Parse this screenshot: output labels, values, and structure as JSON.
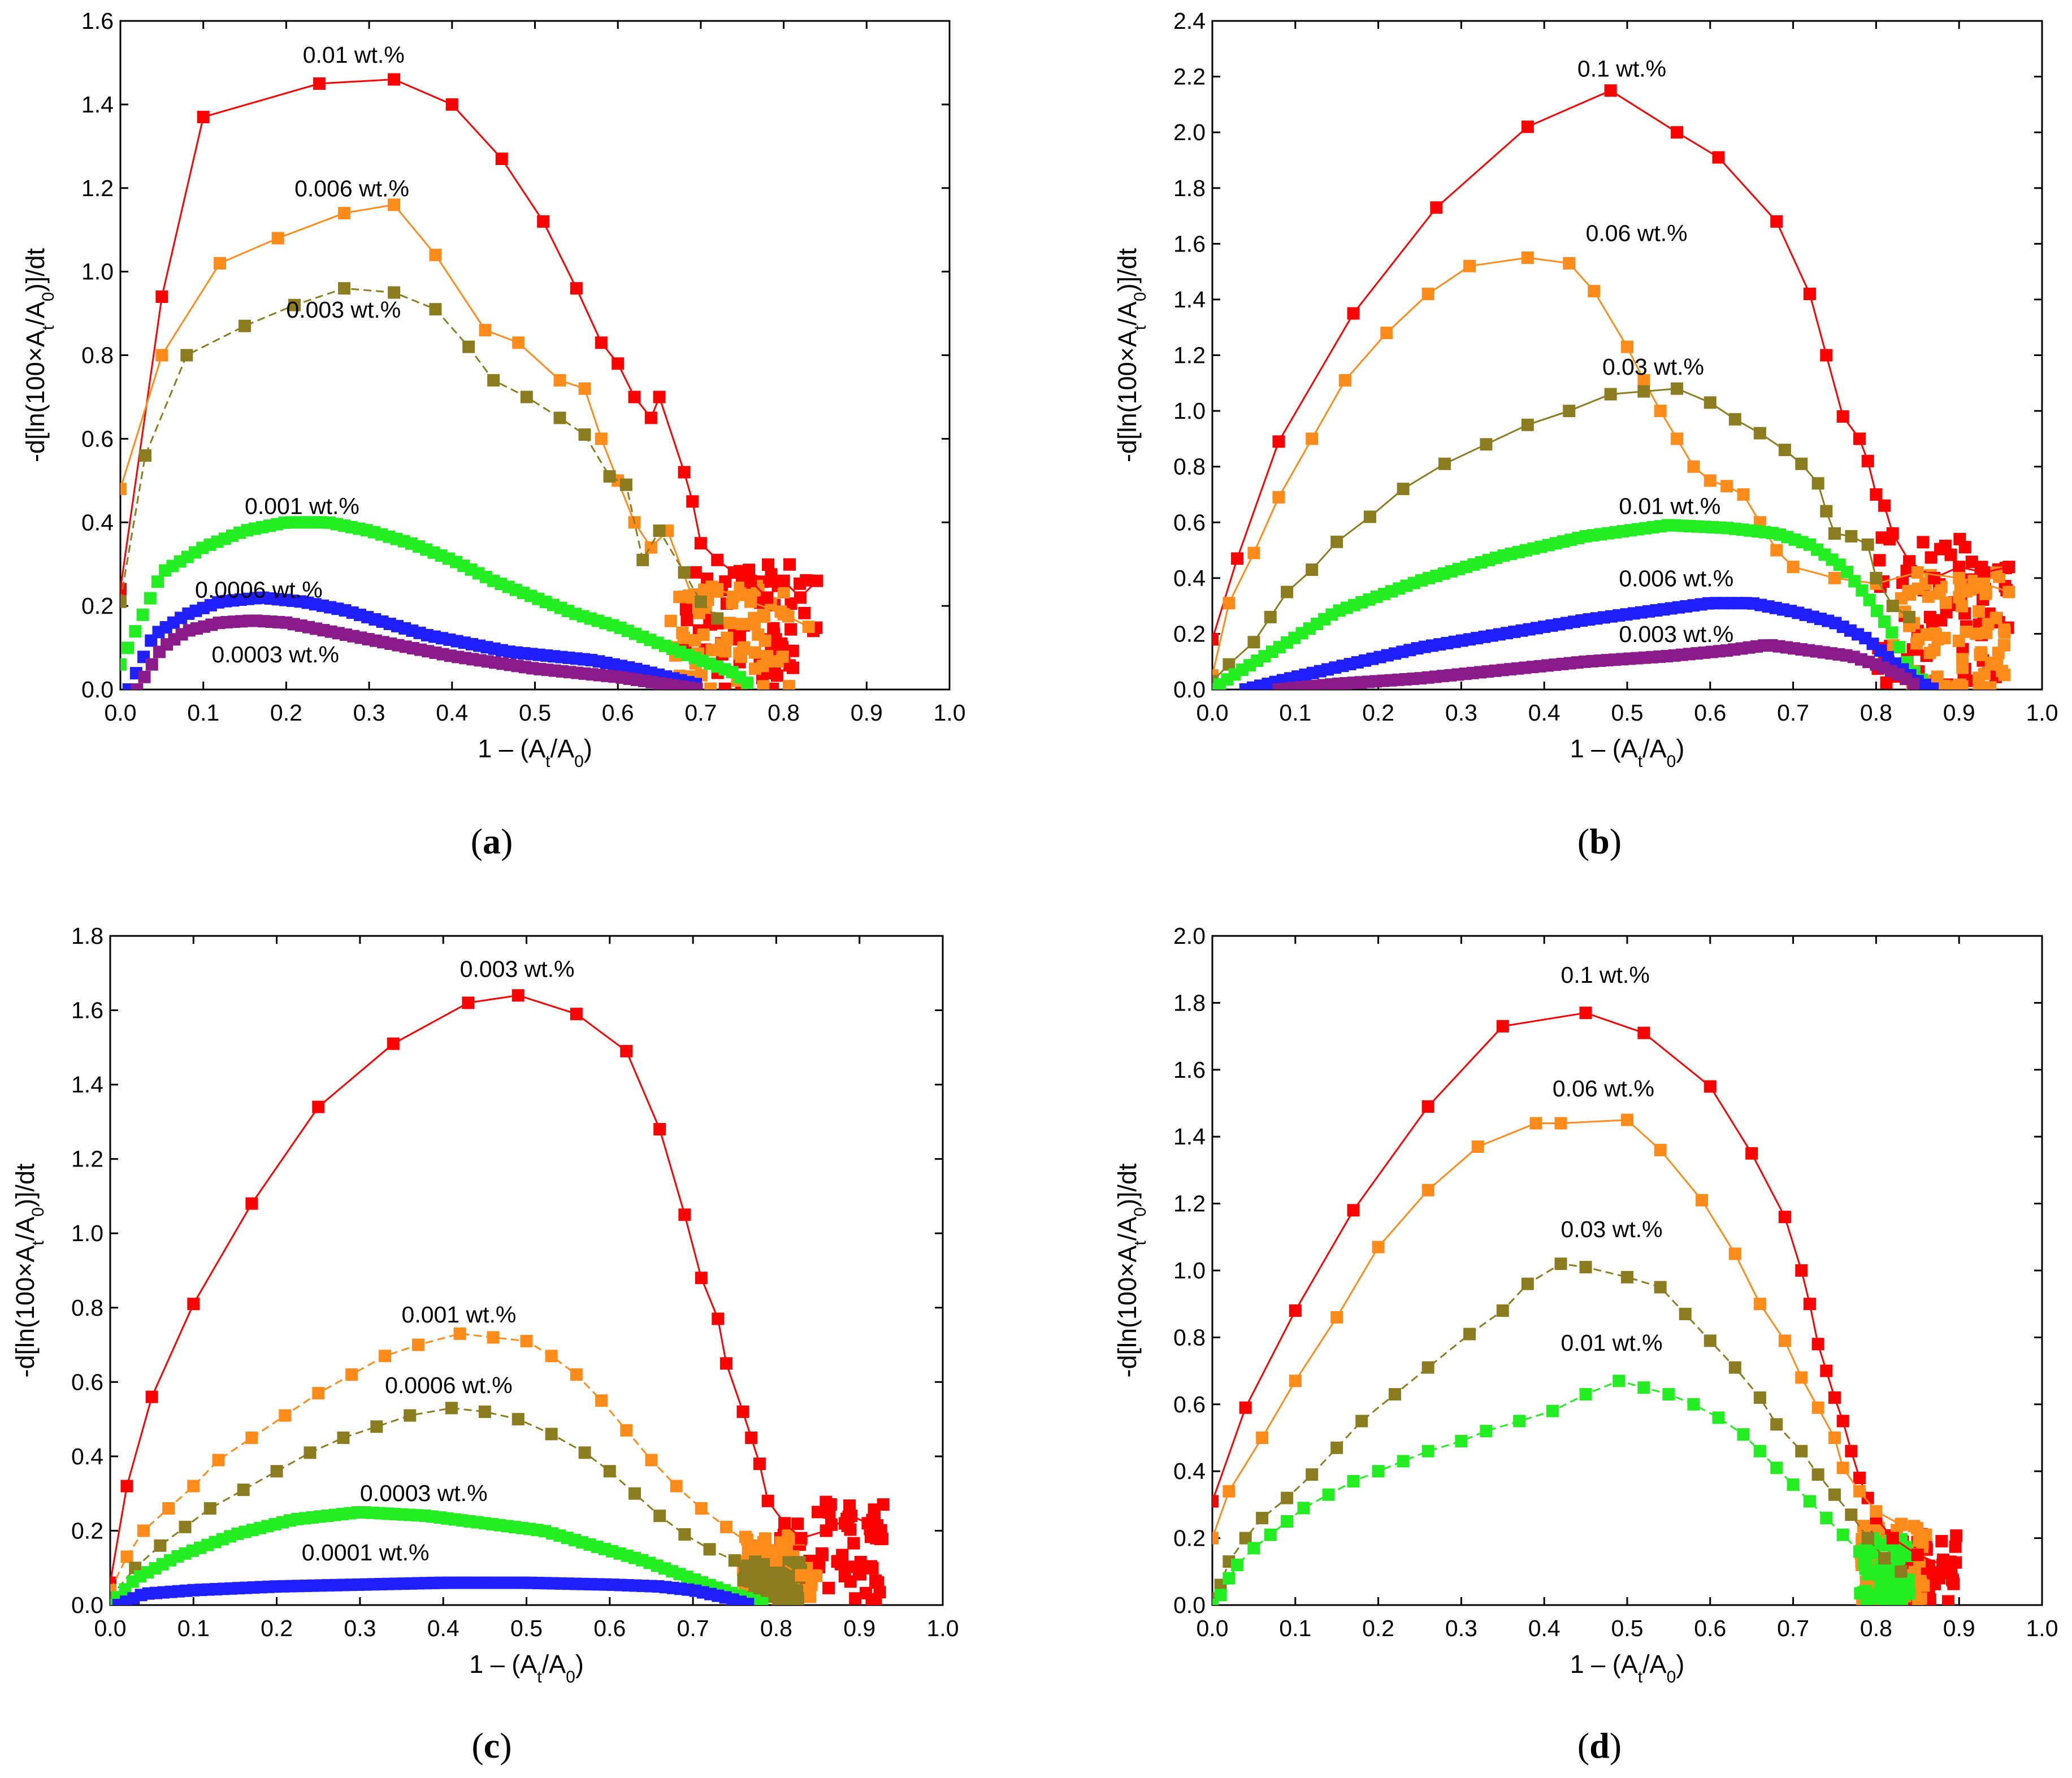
{
  "colors": {
    "red": "#ff0000",
    "orange": "#ff8c1a",
    "olive": "#8b7d1f",
    "green": "#22ee22",
    "blue": "#1f1fff",
    "purple": "#8b1a8b"
  },
  "chart_data": [
    {
      "id": "a",
      "type": "scatter",
      "panel_label": "a",
      "xlabel": "1 – (A_t/A_0)",
      "ylabel": "-d[ln(100×A_t/A_0)]/dt",
      "xlim": [
        0.0,
        1.0
      ],
      "ylim": [
        0.0,
        1.6
      ],
      "xticks": [
        "0.0",
        "0.1",
        "0.2",
        "0.3",
        "0.4",
        "0.5",
        "0.6",
        "0.7",
        "0.8",
        "0.9",
        "1.0"
      ],
      "yticks": [
        "0.0",
        "0.2",
        "0.4",
        "0.6",
        "0.8",
        "1.0",
        "1.2",
        "1.4",
        "1.6"
      ],
      "grid": false,
      "series": [
        {
          "name": "0.01 wt.%",
          "color": "red",
          "points": [
            [
              0.0,
              0.24
            ],
            [
              0.05,
              0.94
            ],
            [
              0.1,
              1.37
            ],
            [
              0.24,
              1.45
            ],
            [
              0.33,
              1.46
            ],
            [
              0.4,
              1.4
            ],
            [
              0.46,
              1.27
            ],
            [
              0.51,
              1.12
            ],
            [
              0.55,
              0.96
            ],
            [
              0.58,
              0.83
            ],
            [
              0.6,
              0.78
            ],
            [
              0.62,
              0.7
            ],
            [
              0.64,
              0.65
            ],
            [
              0.65,
              0.7
            ],
            [
              0.68,
              0.52
            ],
            [
              0.69,
              0.45
            ],
            [
              0.7,
              0.35
            ],
            [
              0.72,
              0.31
            ],
            [
              0.74,
              0.28
            ],
            [
              0.76,
              0.26
            ],
            [
              0.78,
              0.22
            ],
            [
              0.8,
              0.26
            ],
            [
              0.82,
              0.22
            ],
            [
              0.84,
              0.26
            ]
          ],
          "label_pos": [
            0.22,
            1.5
          ]
        },
        {
          "name": "0.006 wt.%",
          "color": "orange",
          "points": [
            [
              0.0,
              0.48
            ],
            [
              0.05,
              0.8
            ],
            [
              0.12,
              1.02
            ],
            [
              0.19,
              1.08
            ],
            [
              0.27,
              1.14
            ],
            [
              0.33,
              1.16
            ],
            [
              0.38,
              1.04
            ],
            [
              0.44,
              0.86
            ],
            [
              0.48,
              0.83
            ],
            [
              0.53,
              0.74
            ],
            [
              0.56,
              0.72
            ],
            [
              0.58,
              0.6
            ],
            [
              0.6,
              0.5
            ],
            [
              0.62,
              0.4
            ],
            [
              0.64,
              0.34
            ],
            [
              0.66,
              0.38
            ],
            [
              0.69,
              0.22
            ],
            [
              0.72,
              0.24
            ],
            [
              0.76,
              0.21
            ],
            [
              0.8,
              0.18
            ],
            [
              0.83,
              0.15
            ]
          ],
          "label_pos": [
            0.21,
            1.18
          ]
        },
        {
          "name": "0.003 wt.%",
          "color": "olive",
          "points": [
            [
              0.0,
              0.21
            ],
            [
              0.03,
              0.56
            ],
            [
              0.08,
              0.8
            ],
            [
              0.15,
              0.87
            ],
            [
              0.21,
              0.92
            ],
            [
              0.27,
              0.96
            ],
            [
              0.33,
              0.95
            ],
            [
              0.38,
              0.91
            ],
            [
              0.42,
              0.82
            ],
            [
              0.45,
              0.74
            ],
            [
              0.49,
              0.7
            ],
            [
              0.53,
              0.65
            ],
            [
              0.56,
              0.61
            ],
            [
              0.59,
              0.51
            ],
            [
              0.61,
              0.49
            ],
            [
              0.63,
              0.31
            ],
            [
              0.65,
              0.38
            ],
            [
              0.68,
              0.28
            ],
            [
              0.7,
              0.21
            ],
            [
              0.72,
              0.17
            ]
          ],
          "label_pos": [
            0.2,
            0.89
          ]
        },
        {
          "name": "0.001 wt.%",
          "color": "green",
          "curve": [
            [
              0.0,
              0.06
            ],
            [
              0.05,
              0.28
            ],
            [
              0.1,
              0.34
            ],
            [
              0.15,
              0.38
            ],
            [
              0.2,
              0.4
            ],
            [
              0.25,
              0.4
            ],
            [
              0.3,
              0.38
            ],
            [
              0.35,
              0.35
            ],
            [
              0.4,
              0.31
            ],
            [
              0.45,
              0.26
            ],
            [
              0.5,
              0.22
            ],
            [
              0.55,
              0.18
            ],
            [
              0.6,
              0.15
            ],
            [
              0.65,
              0.11
            ],
            [
              0.7,
              0.07
            ],
            [
              0.74,
              0.04
            ],
            [
              0.76,
              0.01
            ]
          ],
          "label_pos": [
            0.15,
            0.42
          ]
        },
        {
          "name": "0.0006 wt.%",
          "color": "blue",
          "curve": [
            [
              0.01,
              0.0
            ],
            [
              0.04,
              0.13
            ],
            [
              0.08,
              0.18
            ],
            [
              0.12,
              0.21
            ],
            [
              0.17,
              0.22
            ],
            [
              0.22,
              0.21
            ],
            [
              0.27,
              0.19
            ],
            [
              0.32,
              0.16
            ],
            [
              0.37,
              0.13
            ],
            [
              0.42,
              0.11
            ],
            [
              0.47,
              0.09
            ],
            [
              0.52,
              0.08
            ],
            [
              0.57,
              0.07
            ],
            [
              0.62,
              0.05
            ],
            [
              0.66,
              0.03
            ],
            [
              0.7,
              0.01
            ]
          ],
          "label_pos": [
            0.09,
            0.22
          ]
        },
        {
          "name": "0.0003 wt.%",
          "color": "purple",
          "curve": [
            [
              0.02,
              0.0
            ],
            [
              0.05,
              0.1
            ],
            [
              0.08,
              0.14
            ],
            [
              0.12,
              0.16
            ],
            [
              0.16,
              0.165
            ],
            [
              0.2,
              0.16
            ],
            [
              0.25,
              0.14
            ],
            [
              0.3,
              0.12
            ],
            [
              0.35,
              0.1
            ],
            [
              0.4,
              0.08
            ],
            [
              0.45,
              0.065
            ],
            [
              0.5,
              0.05
            ],
            [
              0.55,
              0.04
            ],
            [
              0.6,
              0.03
            ],
            [
              0.65,
              0.015
            ],
            [
              0.7,
              0.0
            ]
          ],
          "label_pos": [
            0.11,
            0.065
          ]
        }
      ]
    },
    {
      "id": "b",
      "type": "scatter",
      "panel_label": "b",
      "xlabel": "1 – (A_t/A_0)",
      "ylabel": "-d[ln(100×A_t/A_0)]/dt",
      "xlim": [
        0.0,
        1.0
      ],
      "ylim": [
        0.0,
        2.4
      ],
      "xticks": [
        "0.0",
        "0.1",
        "0.2",
        "0.3",
        "0.4",
        "0.5",
        "0.6",
        "0.7",
        "0.8",
        "0.9",
        "1.0"
      ],
      "yticks": [
        "0.0",
        "0.2",
        "0.4",
        "0.6",
        "0.8",
        "1.0",
        "1.2",
        "1.4",
        "1.6",
        "1.8",
        "2.0",
        "2.2",
        "2.4"
      ],
      "grid": false,
      "series": [
        {
          "name": "0.1 wt.%",
          "color": "red",
          "points": [
            [
              0.0,
              0.18
            ],
            [
              0.03,
              0.47
            ],
            [
              0.08,
              0.89
            ],
            [
              0.17,
              1.35
            ],
            [
              0.27,
              1.73
            ],
            [
              0.38,
              2.02
            ],
            [
              0.48,
              2.15
            ],
            [
              0.56,
              2.0
            ],
            [
              0.61,
              1.91
            ],
            [
              0.68,
              1.68
            ],
            [
              0.72,
              1.42
            ],
            [
              0.74,
              1.2
            ],
            [
              0.76,
              0.98
            ],
            [
              0.78,
              0.9
            ],
            [
              0.79,
              0.82
            ],
            [
              0.8,
              0.7
            ],
            [
              0.81,
              0.66
            ],
            [
              0.82,
              0.56
            ],
            [
              0.84,
              0.46
            ],
            [
              0.87,
              0.4
            ],
            [
              0.9,
              0.44
            ],
            [
              0.93,
              0.42
            ],
            [
              0.96,
              0.44
            ]
          ],
          "label_pos": [
            0.44,
            2.2
          ]
        },
        {
          "name": "0.06 wt.%",
          "color": "orange",
          "points": [
            [
              0.0,
              0.05
            ],
            [
              0.02,
              0.31
            ],
            [
              0.05,
              0.49
            ],
            [
              0.08,
              0.69
            ],
            [
              0.12,
              0.9
            ],
            [
              0.16,
              1.11
            ],
            [
              0.21,
              1.28
            ],
            [
              0.26,
              1.42
            ],
            [
              0.31,
              1.52
            ],
            [
              0.38,
              1.55
            ],
            [
              0.43,
              1.53
            ],
            [
              0.46,
              1.43
            ],
            [
              0.5,
              1.23
            ],
            [
              0.52,
              1.11
            ],
            [
              0.54,
              1.0
            ],
            [
              0.56,
              0.9
            ],
            [
              0.58,
              0.8
            ],
            [
              0.6,
              0.75
            ],
            [
              0.62,
              0.73
            ],
            [
              0.64,
              0.7
            ],
            [
              0.66,
              0.6
            ],
            [
              0.68,
              0.5
            ],
            [
              0.7,
              0.44
            ],
            [
              0.75,
              0.4
            ],
            [
              0.8,
              0.38
            ],
            [
              0.85,
              0.42
            ],
            [
              0.9,
              0.4
            ],
            [
              0.93,
              0.38
            ],
            [
              0.96,
              0.35
            ]
          ],
          "remap": "b-orange",
          "label_pos": [
            0.45,
            1.61
          ]
        },
        {
          "name": "0.03 wt.%",
          "color": "olive",
          "label_pos": [
            0.47,
            1.13
          ]
        },
        {
          "name": "0.01 wt.%",
          "color": "green",
          "label_pos": [
            0.49,
            0.63
          ]
        },
        {
          "name": "0.006 wt.%",
          "color": "blue",
          "label_pos": [
            0.49,
            0.37
          ]
        },
        {
          "name": "0.003 wt.%",
          "color": "purple",
          "label_pos": [
            0.49,
            0.17
          ]
        }
      ]
    },
    {
      "id": "c",
      "type": "scatter",
      "panel_label": "c",
      "xlabel": "1 – (A_t/A_0)",
      "ylabel": "-d[ln(100×A_t/A_0)]/dt",
      "xlim": [
        0.0,
        1.0
      ],
      "ylim": [
        0.0,
        1.8
      ],
      "xticks": [
        "0.0",
        "0.1",
        "0.2",
        "0.3",
        "0.4",
        "0.5",
        "0.6",
        "0.7",
        "0.8",
        "0.9",
        "1.0"
      ],
      "yticks": [
        "0.0",
        "0.2",
        "0.4",
        "0.6",
        "0.8",
        "1.0",
        "1.2",
        "1.4",
        "1.6",
        "1.8"
      ],
      "grid": false,
      "series": [
        {
          "name": "0.003 wt.%",
          "color": "red",
          "label_pos": [
            0.42,
            1.69
          ]
        },
        {
          "name": "0.001 wt.%",
          "color": "orange",
          "label_pos": [
            0.35,
            0.76
          ]
        },
        {
          "name": "0.0006 wt.%",
          "color": "olive",
          "label_pos": [
            0.33,
            0.57
          ]
        },
        {
          "name": "0.0003 wt.%",
          "color": "green",
          "label_pos": [
            0.3,
            0.28
          ]
        },
        {
          "name": "0.0001 wt.%",
          "color": "blue",
          "label_pos": [
            0.23,
            0.12
          ]
        }
      ]
    },
    {
      "id": "d",
      "type": "scatter",
      "panel_label": "d",
      "xlabel": "1 – (A_t/A_0)",
      "ylabel": "-d[ln(100×A_t/A_0)]/dt",
      "xlim": [
        0.0,
        1.0
      ],
      "ylim": [
        0.0,
        2.0
      ],
      "xticks": [
        "0.0",
        "0.1",
        "0.2",
        "0.3",
        "0.4",
        "0.5",
        "0.6",
        "0.7",
        "0.8",
        "0.9",
        "1.0"
      ],
      "yticks": [
        "0.0",
        "0.2",
        "0.4",
        "0.6",
        "0.8",
        "1.0",
        "1.2",
        "1.4",
        "1.6",
        "1.8",
        "2.0"
      ],
      "grid": false,
      "series": [
        {
          "name": "0.1 wt.%",
          "color": "red",
          "label_pos": [
            0.42,
            1.86
          ]
        },
        {
          "name": "0.06 wt.%",
          "color": "orange",
          "label_pos": [
            0.41,
            1.52
          ]
        },
        {
          "name": "0.03 wt.%",
          "color": "olive",
          "label_pos": [
            0.42,
            1.1
          ]
        },
        {
          "name": "0.01 wt.%",
          "color": "green",
          "label_pos": [
            0.42,
            0.76
          ]
        }
      ]
    }
  ]
}
